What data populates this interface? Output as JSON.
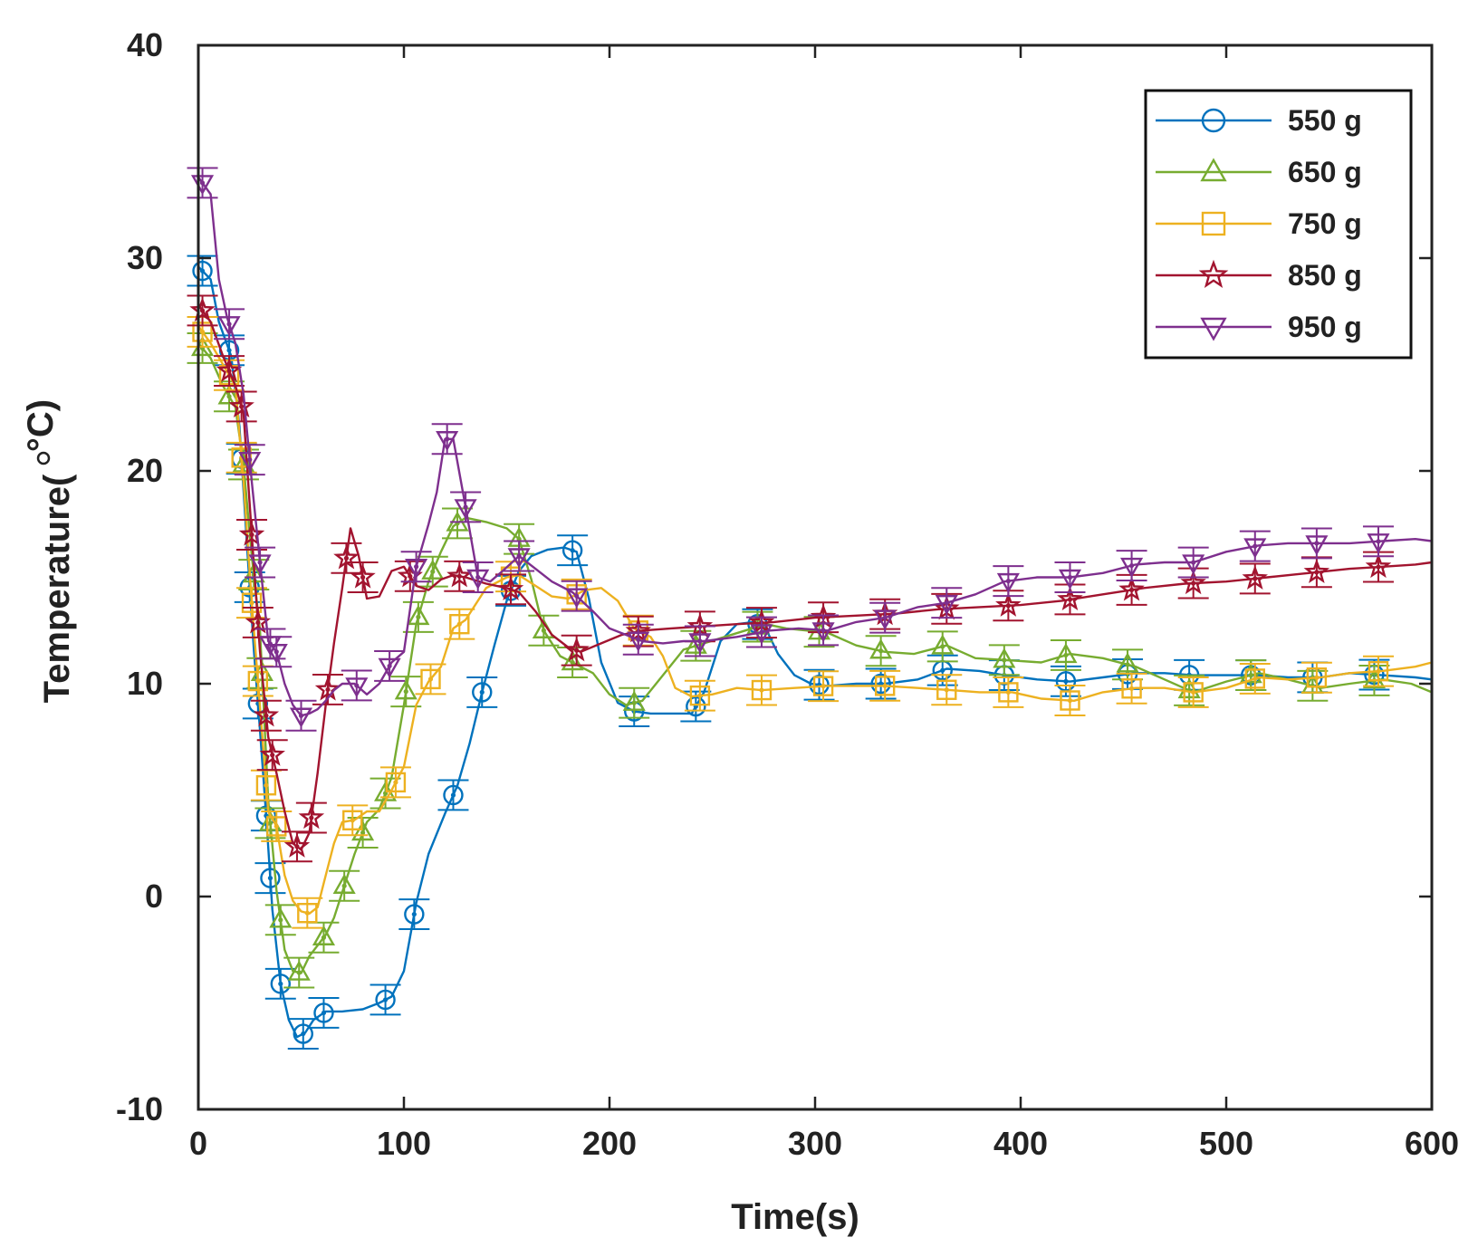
{
  "chart_data": {
    "type": "line",
    "title": "",
    "xlabel": "Time(s)",
    "ylabel": "Temperature(",
    "ylabel_unit": "°C)",
    "xlim": [
      0,
      600
    ],
    "ylim": [
      -10,
      40
    ],
    "xticks": [
      0,
      100,
      200,
      300,
      400,
      500,
      600
    ],
    "yticks": [
      -10,
      0,
      10,
      20,
      30,
      40
    ],
    "grid": false,
    "legend_position": "top-right",
    "error_bar_half_width": 0.7,
    "series": [
      {
        "name": "550 g",
        "color": "#0072BD",
        "marker": "circle",
        "x": [
          0,
          6,
          10,
          16,
          20,
          24,
          27,
          30,
          33,
          36,
          40,
          44,
          48,
          52,
          56,
          62,
          70,
          80,
          88,
          94,
          100,
          106,
          112,
          120,
          126,
          132,
          138,
          144,
          150,
          156,
          162,
          170,
          178,
          184,
          190,
          196,
          204,
          212,
          220,
          230,
          240,
          246,
          254,
          262,
          270,
          276,
          282,
          290,
          298,
          306,
          320,
          334,
          350,
          364,
          380,
          392,
          408,
          424,
          440,
          456,
          470,
          484,
          500,
          516,
          530,
          546,
          560,
          576,
          592,
          600
        ],
        "y": [
          29.6,
          29.0,
          27.0,
          25.4,
          22.1,
          16.0,
          11.6,
          7.8,
          3.8,
          -0.6,
          -4.1,
          -5.8,
          -6.6,
          -6.4,
          -5.8,
          -5.4,
          -5.4,
          -5.3,
          -5.0,
          -4.7,
          -3.5,
          -0.3,
          2.0,
          3.9,
          5.2,
          7.2,
          9.6,
          11.8,
          13.9,
          15.3,
          16.0,
          16.3,
          16.4,
          16.2,
          14.0,
          11.0,
          9.1,
          8.7,
          8.6,
          8.6,
          8.6,
          9.6,
          12.0,
          12.8,
          12.9,
          12.6,
          11.4,
          10.4,
          10.0,
          9.9,
          10.0,
          10.0,
          10.2,
          10.7,
          10.6,
          10.4,
          10.2,
          10.1,
          10.3,
          10.5,
          10.5,
          10.4,
          10.4,
          10.4,
          10.3,
          10.3,
          10.5,
          10.4,
          10.3,
          10.2
        ],
        "marker_x": [
          2,
          15,
          21,
          25,
          29,
          33,
          35,
          40,
          51,
          61,
          91,
          105,
          124,
          138,
          152,
          182,
          212,
          242,
          272,
          302,
          332,
          362,
          392,
          422,
          452,
          482,
          512,
          542,
          572
        ]
      },
      {
        "name": "650 g",
        "color": "#77AC30",
        "marker": "triangle-up",
        "x": [
          0,
          6,
          12,
          18,
          22,
          26,
          30,
          34,
          38,
          42,
          46,
          50,
          54,
          58,
          62,
          66,
          70,
          76,
          82,
          88,
          94,
          100,
          106,
          112,
          118,
          124,
          130,
          140,
          150,
          156,
          162,
          168,
          176,
          184,
          192,
          200,
          208,
          216,
          226,
          236,
          246,
          256,
          266,
          276,
          286,
          296,
          306,
          320,
          334,
          348,
          364,
          378,
          394,
          410,
          424,
          440,
          456,
          470,
          484,
          500,
          516,
          530,
          546,
          560,
          576,
          590,
          600
        ],
        "y": [
          26.0,
          25.3,
          24.0,
          23.0,
          20.3,
          16.0,
          12.5,
          4.5,
          0.3,
          -2.5,
          -3.5,
          -3.6,
          -2.8,
          -2.3,
          -1.8,
          -1.0,
          0.2,
          2.0,
          3.5,
          4.1,
          5.6,
          9.0,
          12.8,
          14.8,
          16.2,
          17.4,
          17.8,
          17.6,
          17.3,
          16.8,
          14.9,
          12.5,
          11.3,
          10.9,
          10.5,
          9.5,
          9.0,
          9.2,
          10.4,
          11.6,
          11.9,
          12.2,
          12.5,
          12.8,
          12.6,
          12.5,
          12.4,
          11.8,
          11.5,
          11.4,
          11.8,
          11.2,
          11.1,
          11.0,
          11.4,
          11.2,
          10.8,
          10.2,
          9.6,
          10.1,
          10.5,
          10.2,
          9.8,
          10.0,
          10.2,
          10.0,
          9.6
        ],
        "marker_x": [
          2,
          15,
          22,
          27,
          31,
          35,
          40,
          49,
          61,
          71,
          80,
          91,
          101,
          107,
          114,
          126,
          156,
          168,
          182,
          212,
          242,
          272,
          302,
          332,
          362,
          392,
          422,
          452,
          482,
          512,
          542,
          572
        ]
      },
      {
        "name": "750 g",
        "color": "#EDB120",
        "marker": "square",
        "x": [
          0,
          6,
          12,
          18,
          22,
          26,
          30,
          34,
          38,
          42,
          46,
          50,
          54,
          58,
          62,
          66,
          70,
          76,
          82,
          88,
          94,
          100,
          106,
          112,
          118,
          124,
          130,
          140,
          150,
          156,
          164,
          172,
          180,
          188,
          196,
          204,
          212,
          220,
          226,
          232,
          240,
          250,
          262,
          274,
          290,
          306,
          320,
          334,
          350,
          366,
          380,
          396,
          410,
          426,
          440,
          456,
          470,
          484,
          500,
          516,
          530,
          546,
          560,
          576,
          592,
          600
        ],
        "y": [
          26.8,
          26.0,
          25.0,
          24.0,
          19.5,
          13.8,
          8.9,
          4.0,
          3.3,
          1.0,
          -0.2,
          -0.7,
          -0.8,
          -0.5,
          1.0,
          2.5,
          3.5,
          3.6,
          4.0,
          4.0,
          5.0,
          6.1,
          9.0,
          10.1,
          10.8,
          12.6,
          13.0,
          14.5,
          15.0,
          15.1,
          14.6,
          14.1,
          14.0,
          14.4,
          14.5,
          13.9,
          12.6,
          12.2,
          11.3,
          9.8,
          9.4,
          9.5,
          9.8,
          9.7,
          9.8,
          9.9,
          9.9,
          9.9,
          9.8,
          9.7,
          9.6,
          9.6,
          9.3,
          9.2,
          9.6,
          9.8,
          9.8,
          9.6,
          9.8,
          10.3,
          10.2,
          10.3,
          10.5,
          10.6,
          10.8,
          11.0
        ],
        "marker_x": [
          2,
          15,
          21,
          26,
          29,
          33,
          38,
          53,
          75,
          96,
          113,
          127,
          152,
          184,
          214,
          244,
          274,
          304,
          334,
          364,
          394,
          424,
          454,
          484,
          514,
          544,
          574
        ]
      },
      {
        "name": "850 g",
        "color": "#A2142F",
        "marker": "star",
        "x": [
          0,
          6,
          12,
          18,
          22,
          26,
          30,
          34,
          38,
          42,
          46,
          50,
          54,
          58,
          62,
          66,
          70,
          74,
          78,
          82,
          88,
          94,
          100,
          106,
          112,
          118,
          124,
          130,
          140,
          150,
          156,
          164,
          172,
          180,
          186,
          196,
          206,
          216,
          230,
          246,
          262,
          280,
          300,
          320,
          340,
          360,
          380,
          400,
          420,
          440,
          460,
          480,
          500,
          520,
          540,
          560,
          576,
          592,
          600
        ],
        "y": [
          27.8,
          27.0,
          25.4,
          24.0,
          22.7,
          17.0,
          11.5,
          7.5,
          5.8,
          4.0,
          2.5,
          2.2,
          3.0,
          5.8,
          9.0,
          11.9,
          14.5,
          17.3,
          16.0,
          14.0,
          14.1,
          15.3,
          15.5,
          14.6,
          14.4,
          14.9,
          15.1,
          15.0,
          14.7,
          14.5,
          14.3,
          13.4,
          12.3,
          11.7,
          11.5,
          11.9,
          12.3,
          12.5,
          12.6,
          12.7,
          12.8,
          12.9,
          13.1,
          13.2,
          13.3,
          13.5,
          13.6,
          13.7,
          13.9,
          14.2,
          14.5,
          14.7,
          14.8,
          15.0,
          15.2,
          15.4,
          15.5,
          15.6,
          15.7
        ],
        "marker_x": [
          2,
          15,
          21,
          26,
          29,
          33,
          36,
          48,
          55,
          63,
          72,
          80,
          103,
          127,
          152,
          184,
          214,
          244,
          274,
          304,
          334,
          364,
          394,
          424,
          454,
          484,
          514,
          544,
          574
        ]
      },
      {
        "name": "950 g",
        "color": "#7E2F8E",
        "marker": "triangle-down",
        "x": [
          0,
          6,
          10,
          14,
          18,
          22,
          26,
          30,
          34,
          38,
          42,
          46,
          50,
          54,
          58,
          62,
          66,
          70,
          76,
          82,
          88,
          94,
          100,
          106,
          112,
          116,
          120,
          124,
          130,
          136,
          142,
          148,
          156,
          164,
          172,
          182,
          192,
          200,
          208,
          216,
          226,
          236,
          246,
          262,
          278,
          292,
          306,
          320,
          334,
          350,
          364,
          378,
          392,
          408,
          424,
          440,
          456,
          470,
          484,
          500,
          516,
          530,
          546,
          560,
          576,
          592,
          600
        ],
        "y": [
          33.8,
          33.0,
          29.0,
          27.2,
          26.0,
          23.6,
          19.5,
          15.7,
          12.0,
          11.5,
          10.0,
          9.0,
          8.5,
          8.6,
          8.8,
          9.2,
          9.7,
          10.0,
          10.0,
          9.5,
          10.0,
          11.0,
          11.5,
          15.5,
          17.5,
          19.0,
          21.5,
          21.5,
          18.3,
          15.0,
          14.8,
          15.3,
          16.0,
          15.4,
          14.8,
          14.3,
          13.4,
          12.6,
          12.3,
          12.0,
          11.9,
          12.0,
          12.0,
          12.2,
          12.5,
          12.6,
          12.5,
          12.9,
          13.1,
          13.6,
          13.8,
          14.2,
          14.8,
          15.0,
          15.0,
          15.2,
          15.6,
          15.7,
          15.7,
          16.2,
          16.5,
          16.6,
          16.6,
          16.6,
          16.7,
          16.8,
          16.7
        ],
        "marker_x": [
          2,
          15,
          25,
          30,
          35,
          38,
          50,
          77,
          93,
          106,
          121,
          130,
          136,
          156,
          184,
          214,
          244,
          274,
          304,
          334,
          364,
          394,
          424,
          454,
          484,
          514,
          544,
          574
        ]
      }
    ]
  }
}
